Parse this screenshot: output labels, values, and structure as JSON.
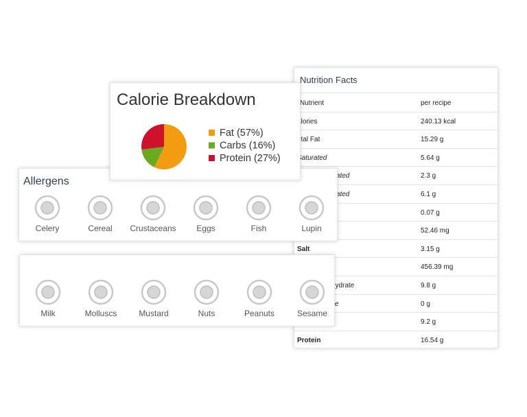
{
  "chart_data": {
    "type": "pie",
    "title": "Calorie Breakdown",
    "labels": [
      "Fat (57%)",
      "Carbs (16%)",
      "Protein (27%)"
    ],
    "values": [
      57,
      16,
      27
    ],
    "colors": [
      "#f39c12",
      "#6aaa1e",
      "#d0112b"
    ]
  },
  "nutrition": {
    "title": "Nutrition Facts",
    "header": [
      "Nutrient",
      "per recipe"
    ],
    "rows": [
      {
        "label": "alories",
        "value": "240.13 kcal"
      },
      {
        "label": "otal Fat",
        "value": "15.29 g"
      },
      {
        "label": "Saturated",
        "value": "5.64 g"
      },
      {
        "label": "urated",
        "value": "2.3 g"
      },
      {
        "label": "urated",
        "value": "6.1 g"
      },
      {
        "value": "0.07 g"
      },
      {
        "value": "52.46 mg"
      },
      {
        "label": "Salt",
        "value": "3.15 g"
      },
      {
        "value": "456.39 mg"
      },
      {
        "label": "hydrate",
        "value": "9.8 g"
      },
      {
        "label": "ore",
        "value": "0 g"
      },
      {
        "value": "9.2 g"
      },
      {
        "label": "Protein",
        "value": "16.54 g"
      }
    ]
  },
  "allergens": {
    "title": "Allergens",
    "row1": [
      "Celery",
      "Cereal",
      "Crustaceans",
      "Eggs",
      "Fish",
      "Lupin"
    ],
    "row2": [
      "Milk",
      "Molluscs",
      "Mustard",
      "Nuts",
      "Peanuts",
      "Sesame"
    ]
  }
}
